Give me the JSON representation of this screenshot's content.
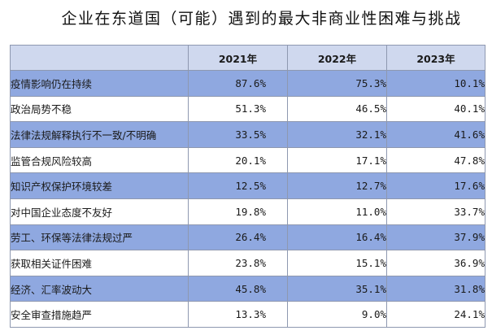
{
  "title": "企业在东道国（可能）遇到的最大非商业性困难与挑战",
  "chart_data": {
    "type": "table",
    "columns": [
      "",
      "2021年",
      "2022年",
      "2023年"
    ],
    "rows": [
      {
        "label": "疫情影响仍在持续",
        "values": [
          "87.6%",
          "75.3%",
          "10.1%"
        ]
      },
      {
        "label": "政治局势不稳",
        "values": [
          "51.3%",
          "46.5%",
          "40.1%"
        ]
      },
      {
        "label": "法律法规解释执行不一致/不明确",
        "values": [
          "33.5%",
          "32.1%",
          "41.6%"
        ]
      },
      {
        "label": "监管合规风险较高",
        "values": [
          "20.1%",
          "17.1%",
          "47.8%"
        ]
      },
      {
        "label": "知识产权保护环境较差",
        "values": [
          "12.5%",
          "12.7%",
          "17.6%"
        ]
      },
      {
        "label": "对中国企业态度不友好",
        "values": [
          "19.8%",
          "11.0%",
          "33.7%"
        ]
      },
      {
        "label": "劳工、环保等法律法规过严",
        "values": [
          "26.4%",
          "16.4%",
          "37.9%"
        ]
      },
      {
        "label": "获取相关证件困难",
        "values": [
          "23.8%",
          "15.1%",
          "36.9%"
        ]
      },
      {
        "label": "经济、汇率波动大",
        "values": [
          "45.8%",
          "35.1%",
          "31.8%"
        ]
      },
      {
        "label": "安全审查措施趋严",
        "values": [
          "13.3%",
          "9.0%",
          "24.1%"
        ]
      }
    ],
    "row_colors": [
      "#8fa8e0",
      "#ffffff"
    ],
    "header_color": "#cfd8ee"
  }
}
